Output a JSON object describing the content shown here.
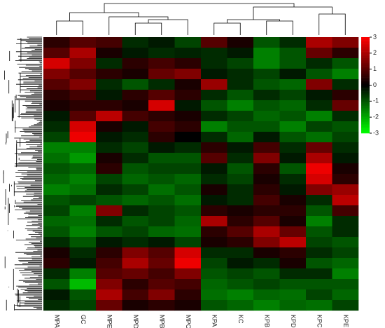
{
  "chart_data": {
    "type": "heatmap",
    "columns": [
      "MPA",
      "GC",
      "MPE",
      "MPD",
      "MPB",
      "MPC",
      "KPA",
      "KC",
      "KPB",
      "KPD",
      "KPC",
      "KPE"
    ],
    "values": [
      [
        0.5,
        1,
        0.8,
        -0.5,
        -0.3,
        -0.8,
        1,
        0.3,
        -1,
        -0.5,
        2,
        1.5
      ],
      [
        1,
        2,
        0.3,
        -0.3,
        -0.5,
        -0.4,
        -0.5,
        -0.3,
        -1.5,
        -1,
        1.2,
        0.5
      ],
      [
        2.5,
        1.5,
        -0.5,
        0.5,
        0.8,
        0.5,
        -0.5,
        -0.8,
        -1.5,
        -1,
        -0.5,
        -1
      ],
      [
        1.5,
        1,
        0.5,
        0.3,
        1.2,
        1.5,
        -0.3,
        -0.5,
        -0.8,
        -0.3,
        -1,
        -1.5
      ],
      [
        1,
        1.5,
        -0.5,
        -1,
        -0.5,
        0.3,
        1.8,
        -0.5,
        -1,
        -1.2,
        1.5,
        -0.5
      ],
      [
        0.5,
        0.8,
        -0.3,
        0.5,
        1,
        0.5,
        -0.5,
        -1,
        -0.5,
        -0.8,
        -0.3,
        0.5
      ],
      [
        0.3,
        0.5,
        0.5,
        0.3,
        2.5,
        -0.3,
        -1,
        -1.5,
        -1,
        -1.2,
        -0.5,
        1.2
      ],
      [
        -0.3,
        1,
        2.2,
        0.8,
        0.5,
        0.3,
        -0.5,
        -0.8,
        -1.2,
        -1,
        -1.5,
        -0.5
      ],
      [
        -0.5,
        2.5,
        0.3,
        -0.3,
        0.8,
        0.5,
        -1.5,
        -1,
        -1,
        -1.5,
        -0.8,
        -1
      ],
      [
        -0.8,
        2.8,
        -0.3,
        -0.5,
        0.5,
        0,
        -0.5,
        -1.2,
        -0.3,
        -1,
        -1.3,
        -0.8
      ],
      [
        -1.5,
        -1.5,
        -0.5,
        -0.8,
        -0.3,
        -0.5,
        0.5,
        -0.3,
        0.8,
        -0.5,
        1.2,
        -0.5
      ],
      [
        -1.3,
        -1.8,
        0.3,
        -0.5,
        -1,
        -1,
        1,
        -0.5,
        1.5,
        -0.3,
        2,
        -0.3
      ],
      [
        -1,
        -1.2,
        0.5,
        -1,
        -0.8,
        -0.8,
        -0.3,
        -1,
        0.5,
        -1,
        2.8,
        0.3
      ],
      [
        -1.2,
        -1.5,
        -0.8,
        -1.2,
        -1,
        -1.2,
        -0.5,
        -0.8,
        0.3,
        -0.5,
        2.5,
        0.5
      ],
      [
        -1.5,
        -1.3,
        -0.5,
        -0.8,
        -1.3,
        -1,
        0.3,
        -0.5,
        0.5,
        -0.3,
        1.5,
        1.8
      ],
      [
        -1,
        -0.8,
        -1,
        -1.2,
        -1,
        -1.3,
        -0.3,
        -0.5,
        0.8,
        0.3,
        -0.5,
        2.2
      ],
      [
        -0.8,
        -1.5,
        1.5,
        -0.5,
        -0.8,
        -1,
        0.5,
        0.3,
        0.5,
        0.5,
        -1,
        0.8
      ],
      [
        -1.2,
        -1.3,
        -0.5,
        -1,
        -0.8,
        -1.2,
        2,
        0.5,
        1,
        0.3,
        -1.5,
        -0.5
      ],
      [
        -1,
        -1.5,
        -1,
        -0.8,
        -1.2,
        -1.3,
        0.5,
        1,
        2,
        1.2,
        -1,
        -0.5
      ],
      [
        -0.5,
        -1,
        -0.3,
        -0.5,
        -0.3,
        -0.8,
        0.3,
        0.5,
        1.5,
        2.2,
        -0.8,
        -1
      ],
      [
        0.3,
        -0.5,
        0.5,
        1.5,
        1,
        2.5,
        -0.5,
        -0.5,
        0.3,
        0.5,
        -0.5,
        -0.8
      ],
      [
        0.5,
        -0.3,
        0.8,
        2,
        1.2,
        2.8,
        -0.8,
        -0.3,
        -0.5,
        0.3,
        -1,
        -1.2
      ],
      [
        -0.5,
        -1.5,
        1,
        1.2,
        0.8,
        1.5,
        -1,
        -0.8,
        -1,
        -0.5,
        -0.5,
        -1.5
      ],
      [
        -1,
        -2.2,
        1.5,
        0.5,
        1,
        0.8,
        -1.2,
        -1,
        -0.8,
        -1,
        -1,
        -1
      ],
      [
        -0.3,
        -1,
        2,
        0.8,
        1.5,
        0.5,
        -1.3,
        -1.5,
        -1.2,
        -1.3,
        -0.8,
        -1.2
      ],
      [
        -0.5,
        -0.8,
        1.2,
        0.3,
        0.5,
        0.3,
        -1,
        -1.2,
        -1.5,
        -1.2,
        -1.3,
        -0.8
      ]
    ],
    "colors": {
      "low": "#00ff00",
      "mid": "#000000",
      "high": "#ff0000"
    },
    "zlim": [
      -3,
      3
    ],
    "zticks": [
      3,
      2,
      1,
      0,
      -1,
      -2,
      -3
    ]
  }
}
